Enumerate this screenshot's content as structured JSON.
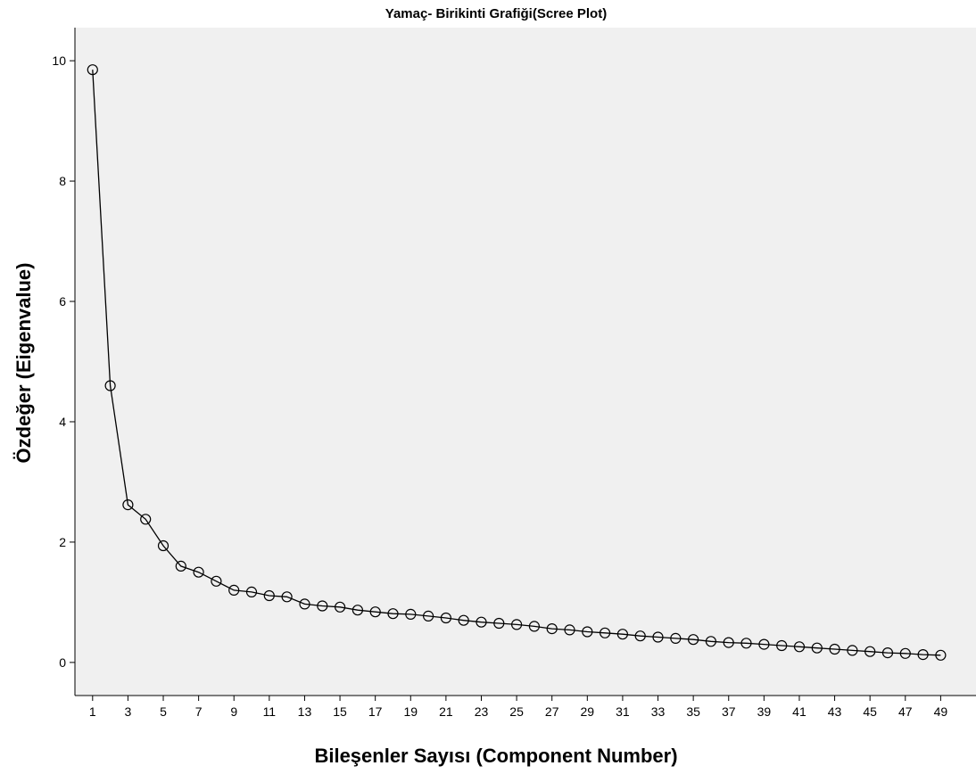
{
  "chart_data": {
    "type": "line",
    "title": "Yamaç- Birikinti Grafiği(Scree Plot)",
    "xlabel": "Bileşenler Sayısı (Component Number)",
    "ylabel": "Özdeğer (Eigenvalue)",
    "xlim": [
      0,
      51
    ],
    "ylim": [
      -0.55,
      10.55
    ],
    "x_ticks": [
      1,
      3,
      5,
      7,
      9,
      11,
      13,
      15,
      17,
      19,
      21,
      23,
      25,
      27,
      29,
      31,
      33,
      35,
      37,
      39,
      41,
      43,
      45,
      47,
      49
    ],
    "y_ticks": [
      0,
      2,
      4,
      6,
      8,
      10
    ],
    "grid": false,
    "legend": "none",
    "background": "#f0f0f0",
    "line_color": "#000000",
    "marker": "open-circle",
    "x": [
      1,
      2,
      3,
      4,
      5,
      6,
      7,
      8,
      9,
      10,
      11,
      12,
      13,
      14,
      15,
      16,
      17,
      18,
      19,
      20,
      21,
      22,
      23,
      24,
      25,
      26,
      27,
      28,
      29,
      30,
      31,
      32,
      33,
      34,
      35,
      36,
      37,
      38,
      39,
      40,
      41,
      42,
      43,
      44,
      45,
      46,
      47,
      48,
      49
    ],
    "values": [
      9.85,
      4.6,
      2.62,
      2.38,
      1.94,
      1.6,
      1.5,
      1.35,
      1.2,
      1.17,
      1.11,
      1.09,
      0.97,
      0.94,
      0.92,
      0.87,
      0.84,
      0.81,
      0.8,
      0.77,
      0.74,
      0.7,
      0.67,
      0.65,
      0.63,
      0.6,
      0.56,
      0.54,
      0.51,
      0.49,
      0.47,
      0.44,
      0.42,
      0.4,
      0.38,
      0.35,
      0.33,
      0.32,
      0.3,
      0.28,
      0.26,
      0.24,
      0.22,
      0.2,
      0.18,
      0.16,
      0.15,
      0.13,
      0.12
    ]
  }
}
